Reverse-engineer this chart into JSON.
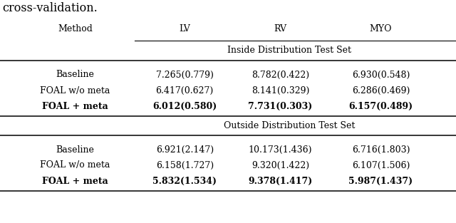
{
  "caption_text": "cross-validation.",
  "col_headers": [
    "Method",
    "LV",
    "RV",
    "MYO"
  ],
  "section1_label": "Inside Distribution Test Set",
  "section2_label": "Outside Distribution Test Set",
  "rows_section1": [
    [
      "Baseline",
      "7.265(0.779)",
      "8.782(0.422)",
      "6.930(0.548)"
    ],
    [
      "FOAL w/o meta",
      "6.417(0.627)",
      "8.141(0.329)",
      "6.286(0.469)"
    ],
    [
      "FOAL + meta",
      "6.012(0.580)",
      "7.731(0.303)",
      "6.157(0.489)"
    ]
  ],
  "rows_section2": [
    [
      "Baseline",
      "6.921(2.147)",
      "10.173(1.436)",
      "6.716(1.803)"
    ],
    [
      "FOAL w/o meta",
      "6.158(1.727)",
      "9.320(1.422)",
      "6.107(1.506)"
    ],
    [
      "FOAL + meta",
      "5.832(1.534)",
      "9.378(1.417)",
      "5.987(1.437)"
    ]
  ],
  "bg_color": "#ffffff",
  "text_color": "#000000",
  "font_size": 9.0,
  "caption_font_size": 11.5
}
